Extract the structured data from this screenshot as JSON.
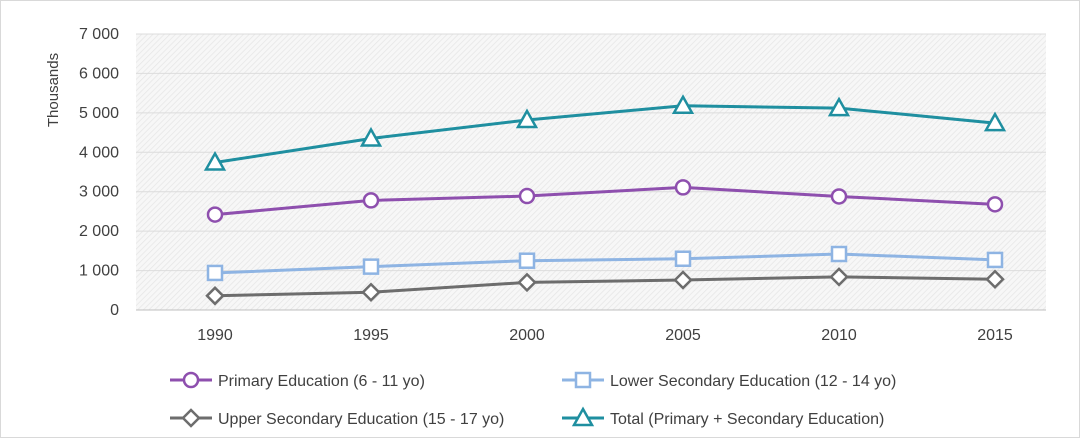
{
  "chart_data": {
    "type": "line",
    "title": "",
    "xlabel": "",
    "ylabel": "Thousands",
    "categories": [
      "1990",
      "1995",
      "2000",
      "2005",
      "2010",
      "2015"
    ],
    "ylim": [
      0,
      7000
    ],
    "yticks": [
      0,
      1000,
      2000,
      3000,
      4000,
      5000,
      6000,
      7000
    ],
    "ytick_labels": [
      "0",
      "1 000",
      "2 000",
      "3 000",
      "4 000",
      "5 000",
      "6 000",
      "7 000"
    ],
    "grid": true,
    "legend_position": "bottom",
    "series": [
      {
        "name": "Primary Education (6 - 11 yo)",
        "color": "#8e4fae",
        "marker": "circle",
        "values": [
          2420,
          2780,
          2890,
          3110,
          2880,
          2680
        ]
      },
      {
        "name": "Lower Secondary Education (12 - 14 yo)",
        "color": "#8eb4e3",
        "marker": "square",
        "values": [
          940,
          1100,
          1250,
          1300,
          1420,
          1270
        ]
      },
      {
        "name": "Upper Secondary Education (15 - 17 yo)",
        "color": "#6d6d6d",
        "marker": "diamond",
        "values": [
          360,
          450,
          700,
          760,
          840,
          780
        ]
      },
      {
        "name": "Total (Primary + Secondary Education)",
        "color": "#1f8fa0",
        "marker": "triangle",
        "values": [
          3740,
          4350,
          4820,
          5180,
          5120,
          4740
        ]
      }
    ]
  }
}
